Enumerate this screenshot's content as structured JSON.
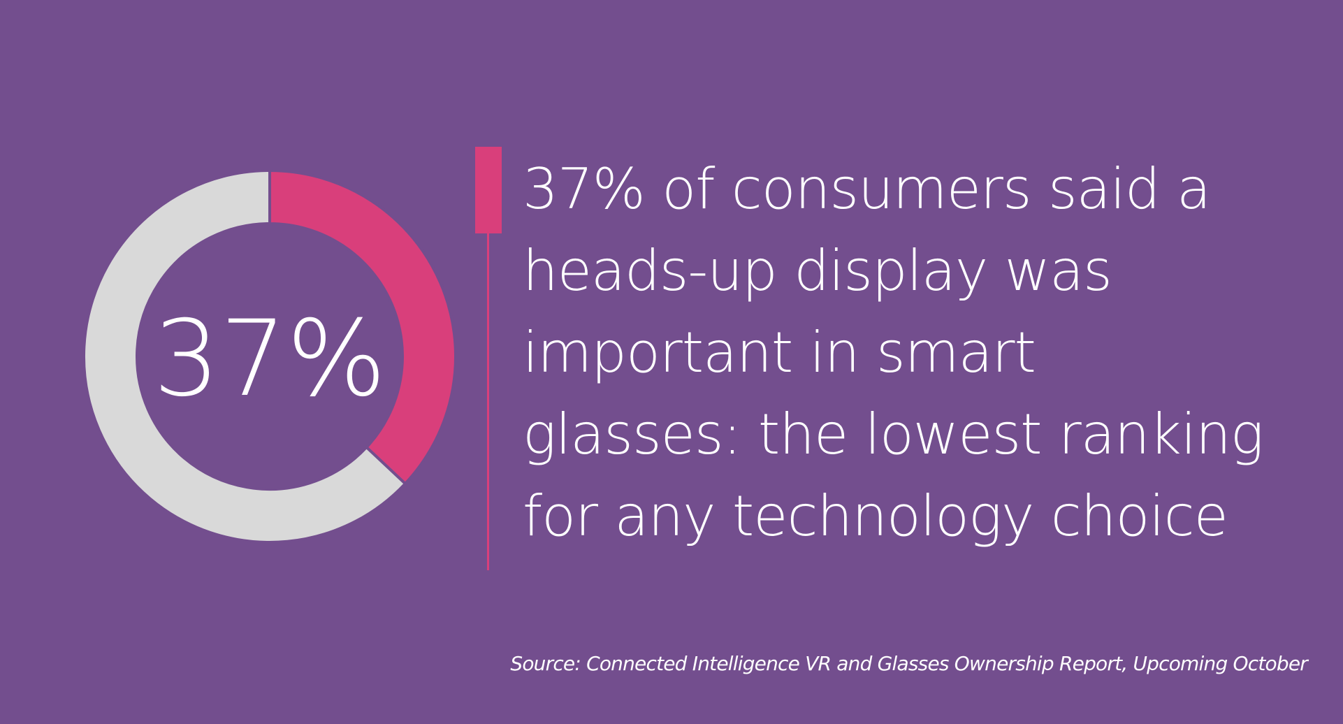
{
  "colors": {
    "background": "#734e8e",
    "accent": "#d93f7b",
    "remainder": "#d9d9d9",
    "text": "#ffffff"
  },
  "chart_data": {
    "type": "pie",
    "style": "donut",
    "title": "",
    "slices": [
      {
        "label": "",
        "value": 37,
        "color": "#d93f7b"
      },
      {
        "label": "",
        "value": 63,
        "color": "#d9d9d9"
      }
    ],
    "center_label": "37%",
    "legend": "none"
  },
  "statement": {
    "lines": [
      "37% of consumers said a",
      "heads-up display was",
      "important in smart",
      "glasses: the lowest ranking",
      "for any technology choice"
    ]
  },
  "source": "Source: Connected Intelligence VR and Glasses Ownership Report, Upcoming October"
}
